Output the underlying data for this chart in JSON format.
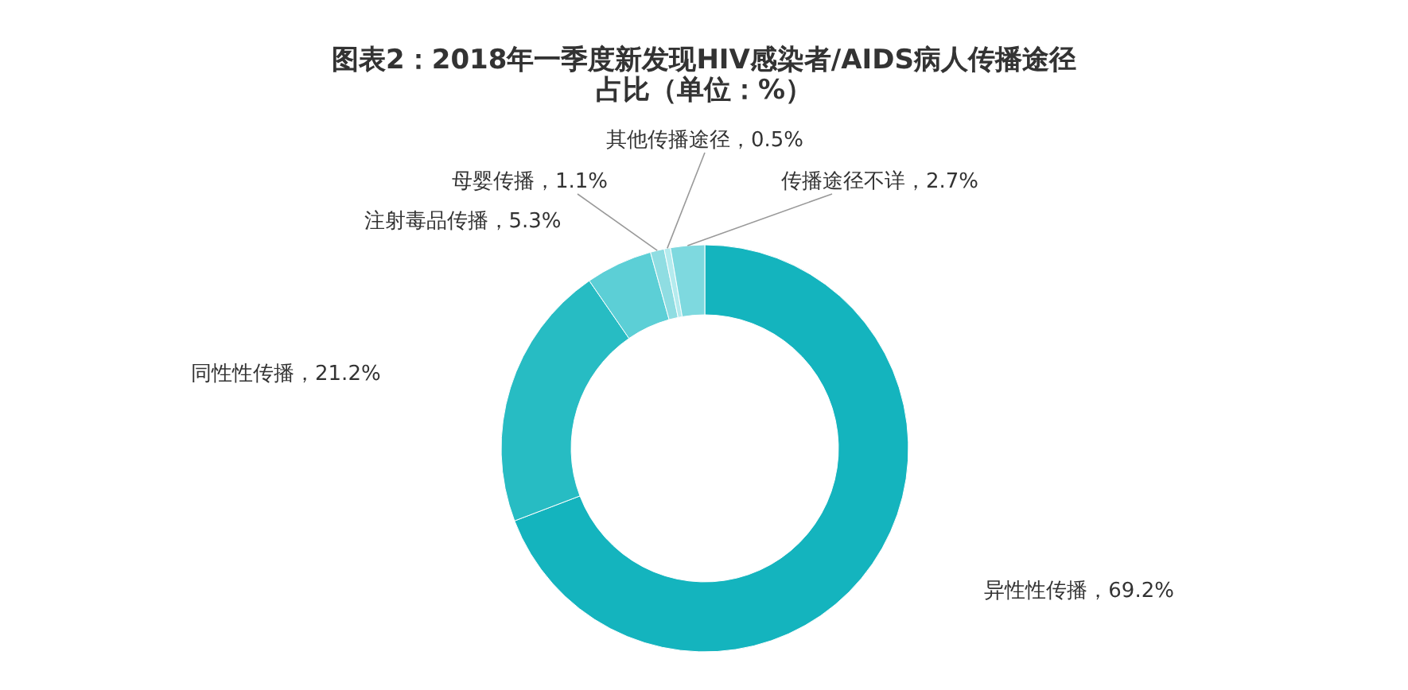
{
  "chart_data": {
    "type": "donut",
    "title": "图表2：2018年一季度新发现HIV感染者/AIDS病人传播途径占比（单位：%）",
    "categories": [
      "异性性传播",
      "同性性传播",
      "注射毒品传播",
      "母婴传播",
      "其他传播途径",
      "传播途径不详"
    ],
    "values": [
      69.2,
      21.2,
      5.3,
      1.1,
      0.5,
      2.7
    ],
    "value_labels": [
      "69.2%",
      "21.2%",
      "5.3%",
      "1.1%",
      "0.5%",
      "2.7%"
    ],
    "colors": [
      "#14b4be",
      "#27bcc3",
      "#5ccfd6",
      "#8fdde2",
      "#b4ebee",
      "#7ed9df"
    ]
  }
}
